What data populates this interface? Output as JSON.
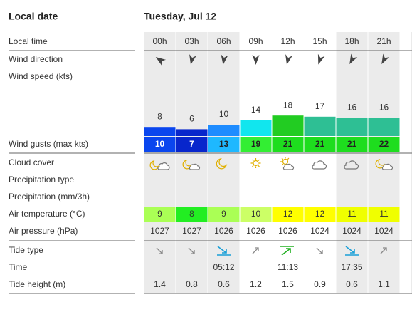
{
  "header": {
    "date_label": "Local date",
    "date": "Tuesday, Jul 12"
  },
  "labels": {
    "local_time": "Local time",
    "wind_direction": "Wind direction",
    "wind_speed": "Wind speed  (kts)",
    "wind_gusts": "Wind gusts  (max kts)",
    "cloud_cover": "Cloud cover",
    "precipitation_type": "Precipitation type",
    "precipitation": "Precipitation  (mm/3h)",
    "air_temperature": "Air temperature  (°C)",
    "air_pressure": "Air pressure  (hPa)",
    "tide_type": "Tide type",
    "time": "Time",
    "tide_height": "Tide height  (m)"
  },
  "hours": [
    "00h",
    "03h",
    "06h",
    "09h",
    "12h",
    "15h",
    "18h",
    "21h"
  ],
  "night": [
    true,
    true,
    true,
    false,
    false,
    false,
    true,
    true
  ],
  "wind_speed": {
    "values": [
      8,
      6,
      10,
      14,
      18,
      17,
      16,
      16
    ],
    "colors": [
      "#0a46ee",
      "#0826cc",
      "#1e8cff",
      "#11e6ee",
      "#22cc22",
      "#2ebf94",
      "#2ebf94",
      "#2ebf94"
    ]
  },
  "wind_gusts": {
    "values": [
      10,
      7,
      13,
      19,
      21,
      21,
      21,
      22
    ],
    "colors": [
      "#0a46ee",
      "#0826cc",
      "#1eb8ff",
      "#33ee33",
      "#1edd1e",
      "#1edd1e",
      "#1edd1e",
      "#1edd1e"
    ]
  },
  "air_temperature": {
    "values": [
      9,
      8,
      9,
      10,
      12,
      12,
      11,
      11
    ],
    "colors": [
      "#aaff55",
      "#22ee22",
      "#aaff55",
      "#ccff66",
      "#ffff00",
      "#ffff00",
      "#f0ff00",
      "#f0ff00"
    ]
  },
  "air_pressure": [
    1027,
    1027,
    1026,
    1026,
    1026,
    1024,
    1024,
    1024
  ],
  "tide_time": [
    null,
    null,
    "05:12",
    null,
    "11:13",
    null,
    "17:35",
    null
  ],
  "tide_height": [
    1.4,
    0.8,
    0.6,
    1.2,
    1.5,
    0.9,
    0.6,
    1.1
  ]
}
